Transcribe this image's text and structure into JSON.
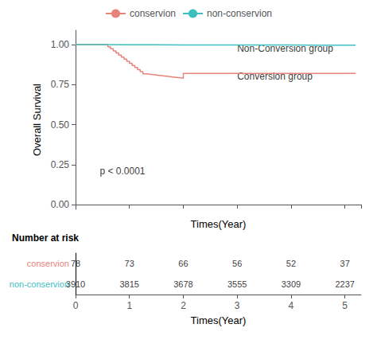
{
  "chart_data": {
    "type": "step",
    "xlabel": "Times(Year)",
    "ylabel": "Overall Survival",
    "xlim": [
      0,
      5.3
    ],
    "ylim": [
      -0.03,
      1.09
    ],
    "xticks": [
      0,
      1,
      2,
      3,
      4,
      5
    ],
    "yticks": [
      {
        "value": 0.0,
        "label": "0.00"
      },
      {
        "value": 0.25,
        "label": "0.25"
      },
      {
        "value": 0.5,
        "label": "0.50"
      },
      {
        "value": 0.75,
        "label": "0.75"
      },
      {
        "value": 1.0,
        "label": "1.00"
      }
    ],
    "tick_labels": "y",
    "grid": false,
    "legend": "top",
    "series": [
      {
        "name": "conservion",
        "color": "#E8837A",
        "x": [
          0.0,
          0.55,
          0.6,
          0.65,
          0.7,
          0.75,
          0.8,
          0.85,
          0.9,
          0.95,
          1.0,
          1.05,
          1.1,
          1.15,
          1.2,
          1.25,
          1.3,
          1.35,
          1.4,
          1.45,
          1.5,
          1.55,
          1.6,
          1.65,
          1.7,
          1.75,
          1.8,
          1.85,
          1.9,
          1.95,
          2.0,
          2.05,
          2.1,
          2.15,
          2.2,
          2.25,
          2.3,
          2.4,
          2.5,
          2.6,
          2.7,
          2.8,
          2.9,
          3.0,
          3.1,
          3.5,
          4.0,
          4.5,
          5.0,
          5.2
        ],
        "values": [
          1.0,
          1.0,
          0.987,
          0.974,
          0.961,
          0.948,
          0.935,
          0.922,
          0.909,
          0.896,
          0.883,
          0.87,
          0.857,
          0.844,
          0.831,
          0.818,
          0.816,
          0.814,
          0.812,
          0.81,
          0.808,
          0.806,
          0.804,
          0.802,
          0.8,
          0.798,
          0.796,
          0.794,
          0.792,
          0.79,
          0.82,
          0.82,
          0.82,
          0.82,
          0.82,
          0.82,
          0.82,
          0.82,
          0.82,
          0.82,
          0.82,
          0.82,
          0.82,
          0.82,
          0.82,
          0.82,
          0.82,
          0.82,
          0.82,
          0.82
        ]
      },
      {
        "name": "non-conservion",
        "color": "#3DBFBF",
        "x": [
          0.0,
          0.5,
          1.0,
          1.5,
          2.0,
          2.5,
          3.0,
          3.5,
          4.0,
          4.5,
          5.0,
          5.2
        ],
        "values": [
          1.0,
          0.9995,
          0.999,
          0.9985,
          0.998,
          0.9978,
          0.9975,
          0.9973,
          0.997,
          0.9968,
          0.9965,
          0.9965
        ]
      }
    ],
    "annotations": [
      {
        "text": "p < 0.0001",
        "x": 0.45,
        "y": 0.21
      },
      {
        "text": "Non-Conversion group",
        "x": 3.0,
        "y": 0.975
      },
      {
        "text": "Conversion group",
        "x": 3.0,
        "y": 0.8
      }
    ],
    "risk_table": {
      "title": "Number at risk",
      "times": [
        0,
        1,
        2,
        3,
        4,
        5
      ],
      "xlabel": "Times(Year)",
      "rows": [
        {
          "name": "conservion",
          "color": "#E8837A",
          "values": [
            78,
            73,
            66,
            56,
            52,
            37
          ]
        },
        {
          "name": "non-conservion",
          "color": "#3DBFBF",
          "values": [
            3910,
            3815,
            3678,
            3555,
            3309,
            2237
          ]
        }
      ]
    }
  }
}
